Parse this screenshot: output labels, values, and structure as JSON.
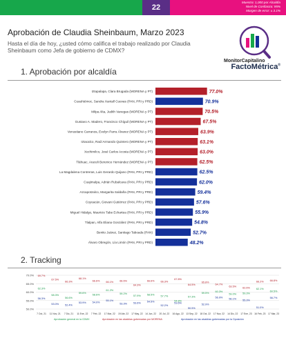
{
  "header": {
    "page_number": "22",
    "methodology": [
      "Muestra: 1,000 por Alcaldía",
      "Nivel de Confianza: 95%",
      "Margen de error: ± 3.1%"
    ]
  },
  "title": "Aprobación de Claudia Sheinbaum, Marzo 2023",
  "subtitle": "Hasta el día de hoy, ¿usted cómo califica el trabajo realizado por Claudia Sheinbaum como Jefa de gobierno de CDMX?",
  "logo_text": "MonitorCapitalino",
  "brand": "FactoMétrica",
  "brand_mark": "®",
  "section1_title": "1. Aprobación por alcaldía",
  "section2_title": "2. Tracking",
  "colors": {
    "red": "#b3202a",
    "blue": "#14309a",
    "green": "#1a9a4a"
  },
  "chart_data": [
    {
      "type": "bar",
      "orientation": "horizontal",
      "categories": [
        "Iztapalapa, Clara Brugada (MORENA y PT)",
        "Cuauhtémoc, Sandra Xantall Cuevas (PAN, PRI y PRD)",
        "Milpa Alta, Judith Vanegas (MORENA y PT)",
        "Gustavo A. Madero, Francisco Chíguil (MORENA y PT)",
        "Venustiano Carranza, Evelyn Parra Álvarez (MORENA y PT)",
        "Iztacalco, Raúl Armando Quintero (MORENA y PT)",
        "Xochimilco, José Carlos Acosta (MORENA y PT)",
        "Tláhuac, Araceli Berenice Hernández (MORENA y PT)",
        "La Magdalena Contreras, Luis Gerardo Quijano (PAN, PRI y PRD)",
        "Cuajimalpa, Adrián Rubalcava (PAN, PRI y PRD)",
        "Azcapotzalco, Margarita Saldaña (PAN, PRI y PRD)",
        "Coyoacán, Giovani Gutiérrez (PAN, PRI y PRD)",
        "Miguel Hidalgo, Mauricio Tabe Echartea (PAN, PRI y PRD)",
        "Tlalpan, Alfa Eliana González (PAN, PRI y PRD)",
        "Benito Juárez, Santiago Taboada (PAN)",
        "Álvaro Obregón, Lía Limón (PAN, PRI y PRD)"
      ],
      "values": [
        77.0,
        70.9,
        70.5,
        67.5,
        63.9,
        63.1,
        63.0,
        62.5,
        62.5,
        62.0,
        59.4,
        57.6,
        55.9,
        54.8,
        52.7,
        48.2
      ],
      "labels": [
        "77.0%",
        "70.9%",
        "70.5%",
        "67.5%",
        "63.9%",
        "63.1%",
        "63.0%",
        "62.5%",
        "62.5%",
        "62.0%",
        "59.4%",
        "57.6%",
        "55.9%",
        "54.8%",
        "52.7%",
        "48.2%"
      ],
      "bar_colors": [
        "red",
        "blue",
        "red",
        "red",
        "red",
        "red",
        "red",
        "red",
        "blue",
        "blue",
        "blue",
        "blue",
        "blue",
        "blue",
        "blue",
        "blue"
      ]
    },
    {
      "type": "line",
      "x": [
        "7 Oct, 21",
        "11 Nov, 21",
        "7 Dic, 21",
        "11 Ene, 22",
        "7 Feb, 22",
        "17 Mar, 22",
        "19 Abr, 22",
        "17 May, 22",
        "14 Jun, 22",
        "20 Jul, 22",
        "16 Ago, 22",
        "13 Sep, 22",
        "18 Oct, 22",
        "17 Nov, 22",
        "14 Dic, 22",
        "17 Ene, 23",
        "16 Feb, 23",
        "17 Mar, 23"
      ],
      "series": [
        {
          "name": "Aprobación general en la CDMX",
          "color": "green",
          "values": [
            62.3,
            58.3,
            56.6,
            59.6,
            58.6,
            61.2,
            59.2,
            57.9,
            58.5,
            57.7,
            54.8,
            57.3,
            59.5,
            60.3,
            59.0,
            59.3,
            62.1,
            60.5
          ]
        },
        {
          "name": "Aprobación en las alcaldías gobernadas por MORENA",
          "color": "red",
          "values": [
            69.7,
            67.5,
            66.3,
            68.1,
            66.6,
            66.1,
            66.6,
            64.3,
            66.6,
            66.3,
            67.8,
            64.5,
            65.8,
            64.7,
            63.5,
            62.6,
            66.2,
            66.8
          ]
        },
        {
          "name": "Aprobación en las alcaldías gobernadas por la Oposición",
          "color": "blue",
          "values": [
            56.3,
            53.0,
            52.4,
            53.9,
            54.0,
            55.1,
            53.3,
            53.6,
            54.5,
            52.2,
            53.6,
            50.5,
            52.9,
            56.9,
            56.1,
            55.3,
            51.0,
            56.7
          ]
        }
      ],
      "ylim": [
        50.0,
        70.0
      ],
      "y_ticks": [
        "50.0%",
        "55.0%",
        "60.0%",
        "65.0%",
        "70.0%"
      ],
      "grid": true
    }
  ]
}
